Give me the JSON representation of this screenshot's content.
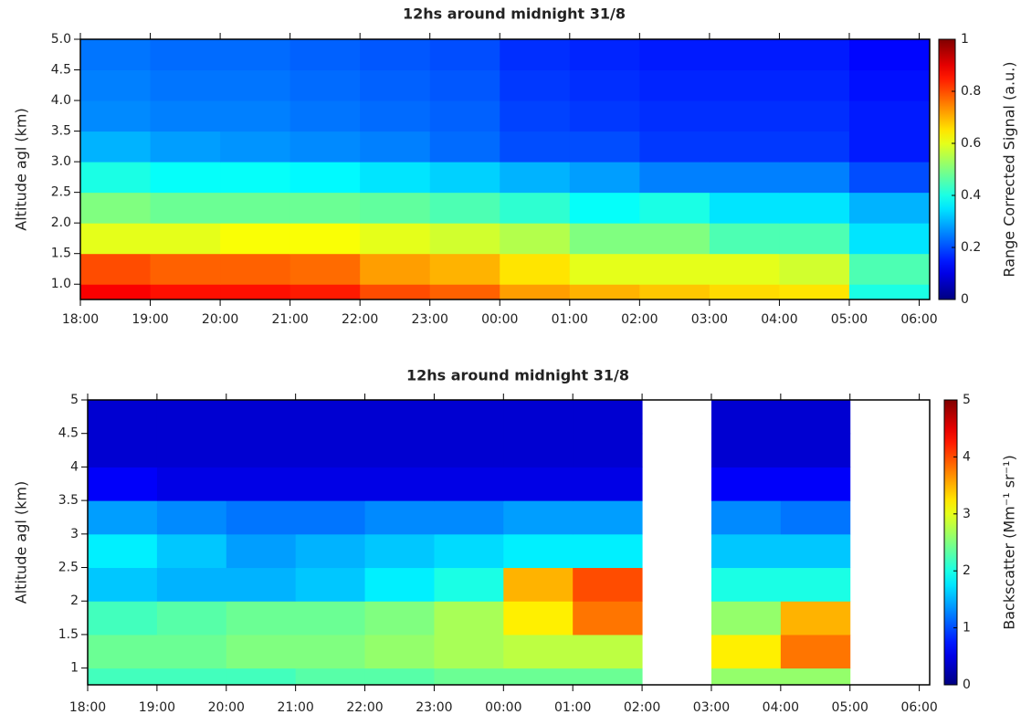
{
  "chart_data": [
    {
      "type": "heatmap",
      "title": "12hs around midnight 31/8",
      "y_label": "Altitude agl (km)",
      "colorbar_label": "Range Corrected Signal (a.u.)",
      "colormap": "jet",
      "xlim": [
        18,
        30.15
      ],
      "ylim": [
        0.75,
        5
      ],
      "xticks": [
        {
          "value": 18,
          "label": "18:00"
        },
        {
          "value": 19,
          "label": "19:00"
        },
        {
          "value": 20,
          "label": "20:00"
        },
        {
          "value": 21,
          "label": "21:00"
        },
        {
          "value": 22,
          "label": "22:00"
        },
        {
          "value": 23,
          "label": "23:00"
        },
        {
          "value": 24,
          "label": "00:00"
        },
        {
          "value": 25,
          "label": "01:00"
        },
        {
          "value": 26,
          "label": "02:00"
        },
        {
          "value": 27,
          "label": "03:00"
        },
        {
          "value": 28,
          "label": "04:00"
        },
        {
          "value": 29,
          "label": "05:00"
        },
        {
          "value": 30,
          "label": "06:00"
        }
      ],
      "yticks": [
        {
          "value": 1,
          "label": "1.0"
        },
        1.5,
        {
          "value": 2,
          "label": "2.0"
        },
        2.5,
        {
          "value": 3,
          "label": "3.0"
        },
        3.5,
        {
          "value": 4,
          "label": "4.0"
        },
        4.5,
        {
          "value": 5,
          "label": "5.0"
        }
      ],
      "zlim": [
        0,
        1
      ],
      "zticks": [
        0,
        0.2,
        0.4,
        0.6,
        0.8,
        1
      ],
      "x_edges": [
        18,
        19,
        20,
        21,
        22,
        23,
        24,
        25,
        26,
        27,
        28,
        29,
        30.15
      ],
      "y_edges": [
        0.75,
        1,
        1.5,
        2,
        2.5,
        3,
        3.5,
        4,
        4.5,
        5
      ],
      "values": [
        [
          0.88,
          0.86,
          0.86,
          0.85,
          0.8,
          0.78,
          0.72,
          0.7,
          0.68,
          0.66,
          0.65,
          0.4
        ],
        [
          0.8,
          0.78,
          0.78,
          0.77,
          0.72,
          0.7,
          0.65,
          0.6,
          0.6,
          0.6,
          0.58,
          0.45
        ],
        [
          0.6,
          0.6,
          0.62,
          0.62,
          0.6,
          0.58,
          0.55,
          0.5,
          0.5,
          0.45,
          0.45,
          0.35
        ],
        [
          0.5,
          0.48,
          0.48,
          0.48,
          0.47,
          0.45,
          0.42,
          0.38,
          0.4,
          0.35,
          0.35,
          0.3
        ],
        [
          0.4,
          0.38,
          0.38,
          0.37,
          0.35,
          0.33,
          0.3,
          0.28,
          0.25,
          0.25,
          0.25,
          0.2
        ],
        [
          0.3,
          0.28,
          0.27,
          0.26,
          0.25,
          0.23,
          0.2,
          0.2,
          0.18,
          0.18,
          0.18,
          0.15
        ],
        [
          0.26,
          0.25,
          0.25,
          0.24,
          0.23,
          0.22,
          0.19,
          0.18,
          0.17,
          0.17,
          0.17,
          0.15
        ],
        [
          0.25,
          0.24,
          0.24,
          0.23,
          0.22,
          0.21,
          0.18,
          0.17,
          0.16,
          0.16,
          0.16,
          0.14
        ],
        [
          0.24,
          0.23,
          0.23,
          0.22,
          0.21,
          0.2,
          0.17,
          0.16,
          0.15,
          0.15,
          0.15,
          0.13
        ]
      ]
    },
    {
      "type": "heatmap",
      "title": "12hs around midnight 31/8",
      "y_label": "Altitude agl (km)",
      "colorbar_label": "Backscatter (Mm⁻¹ sr⁻¹)",
      "colormap": "jet",
      "xlim": [
        18,
        30.15
      ],
      "ylim": [
        0.75,
        5
      ],
      "xticks": [
        {
          "value": 18,
          "label": "18:00"
        },
        {
          "value": 19,
          "label": "19:00"
        },
        {
          "value": 20,
          "label": "20:00"
        },
        {
          "value": 21,
          "label": "21:00"
        },
        {
          "value": 22,
          "label": "22:00"
        },
        {
          "value": 23,
          "label": "23:00"
        },
        {
          "value": 24,
          "label": "00:00"
        },
        {
          "value": 25,
          "label": "01:00"
        },
        {
          "value": 26,
          "label": "02:00"
        },
        {
          "value": 27,
          "label": "03:00"
        },
        {
          "value": 28,
          "label": "04:00"
        },
        {
          "value": 29,
          "label": "05:00"
        },
        {
          "value": 30,
          "label": "06:00"
        }
      ],
      "yticks": [
        1,
        1.5,
        2,
        2.5,
        3,
        3.5,
        4,
        4.5,
        5
      ],
      "zlim": [
        0,
        5
      ],
      "zticks": [
        0,
        1,
        2,
        3,
        4,
        5
      ],
      "x_edges": [
        18,
        19,
        20,
        21,
        22,
        23,
        24,
        25,
        26,
        27,
        28,
        29,
        30.15
      ],
      "y_edges": [
        0.75,
        1,
        1.5,
        2,
        2.5,
        3,
        3.5,
        4,
        4.5,
        5
      ],
      "values": [
        [
          2.2,
          2.2,
          2.2,
          2.3,
          2.3,
          2.4,
          2.4,
          2.4,
          null,
          2.6,
          2.6,
          null
        ],
        [
          2.4,
          2.4,
          2.5,
          2.5,
          2.6,
          2.7,
          2.8,
          2.8,
          null,
          3.2,
          3.8,
          null
        ],
        [
          2.2,
          2.3,
          2.4,
          2.4,
          2.5,
          2.7,
          3.2,
          3.8,
          null,
          2.6,
          3.5,
          null
        ],
        [
          1.6,
          1.5,
          1.5,
          1.6,
          1.8,
          2.0,
          3.5,
          4.0,
          null,
          2.0,
          2.0,
          null
        ],
        [
          1.8,
          1.6,
          1.4,
          1.5,
          1.6,
          1.7,
          1.8,
          1.8,
          null,
          1.6,
          1.6,
          null
        ],
        [
          1.4,
          1.3,
          1.2,
          1.2,
          1.3,
          1.3,
          1.4,
          1.4,
          null,
          1.3,
          1.2,
          null
        ],
        [
          0.6,
          0.5,
          0.5,
          0.5,
          0.5,
          0.5,
          0.5,
          0.5,
          null,
          0.6,
          0.6,
          null
        ],
        [
          0.4,
          0.4,
          0.4,
          0.4,
          0.4,
          0.4,
          0.4,
          0.4,
          null,
          0.4,
          0.4,
          null
        ],
        [
          0.4,
          0.4,
          0.4,
          0.4,
          0.4,
          0.4,
          0.4,
          0.4,
          null,
          0.4,
          0.4,
          null
        ]
      ]
    }
  ]
}
